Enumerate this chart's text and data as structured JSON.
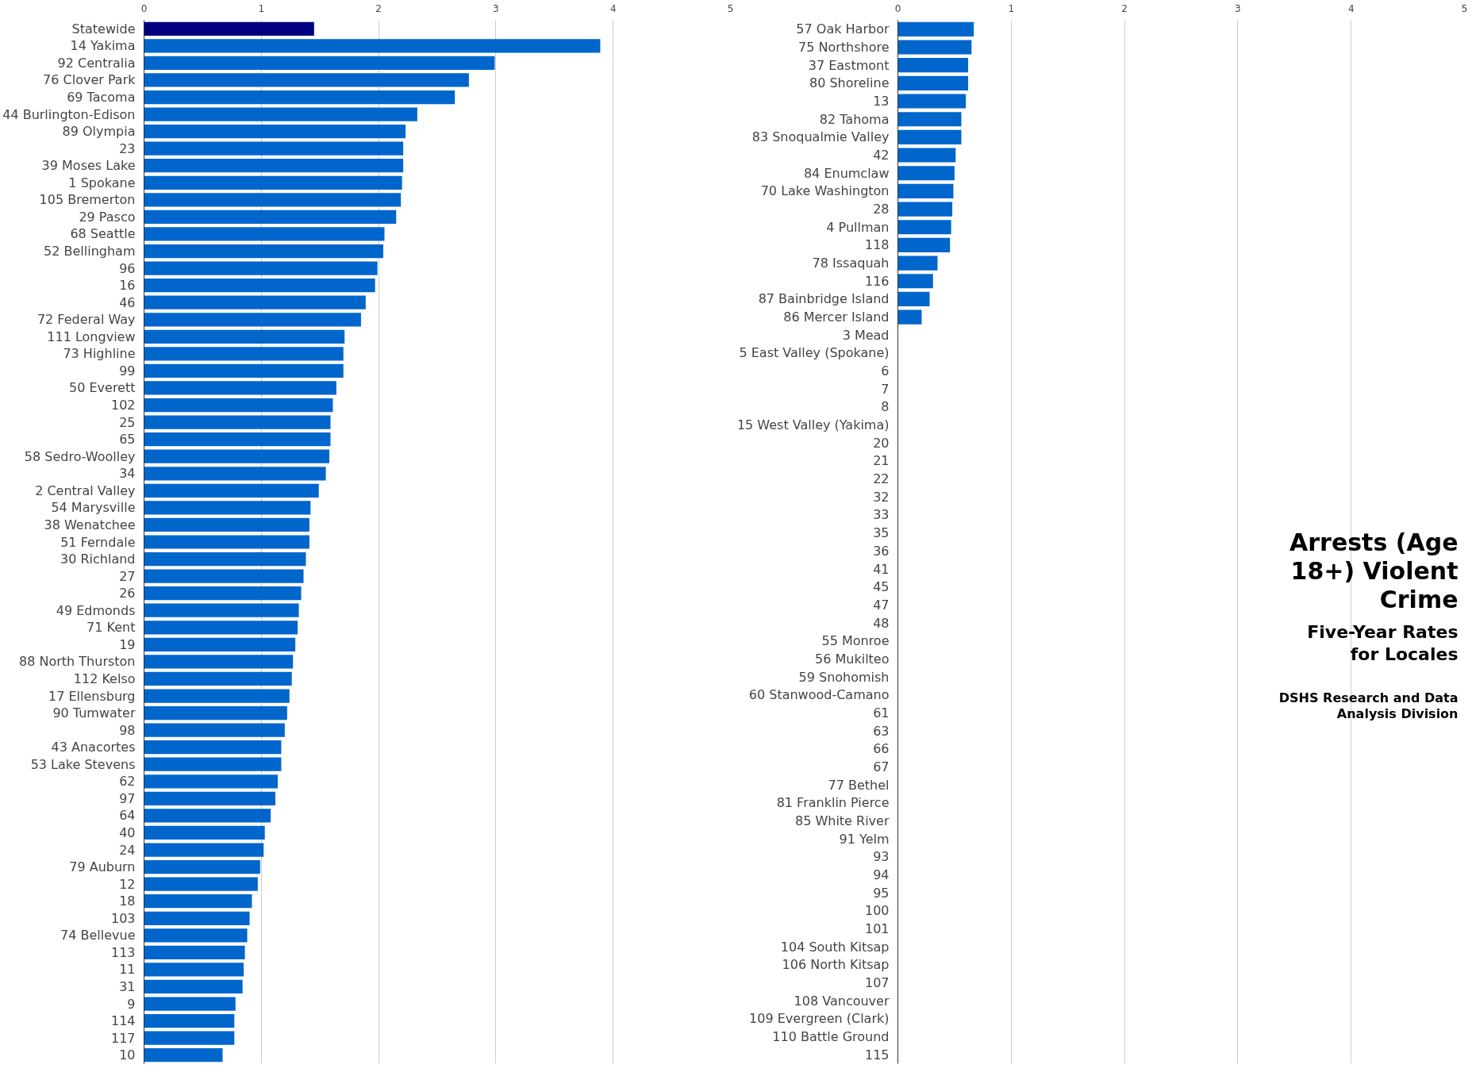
{
  "chart_data": [
    {
      "type": "bar",
      "orientation": "horizontal",
      "grid": "x",
      "xlim": [
        0,
        5
      ],
      "xticks": [
        0,
        1,
        2,
        3,
        4,
        5
      ],
      "categories": [
        "Statewide",
        "14 Yakima",
        "92 Centralia",
        "76 Clover Park",
        "69 Tacoma",
        "44 Burlington-Edison",
        "89 Olympia",
        "23",
        "39 Moses Lake",
        "1 Spokane",
        "105 Bremerton",
        "29 Pasco",
        "68 Seattle",
        "52 Bellingham",
        "96",
        "16",
        "46",
        "72 Federal Way",
        "111 Longview",
        "73 Highline",
        "99",
        "50 Everett",
        "102",
        "25",
        "65",
        "58 Sedro-Woolley",
        "34",
        "2 Central Valley",
        "54 Marysville",
        "38 Wenatchee",
        "51 Ferndale",
        "30 Richland",
        "27",
        "26",
        "49 Edmonds",
        "71 Kent",
        "19",
        "88 North Thurston",
        "112 Kelso",
        "17 Ellensburg",
        "90 Tumwater",
        "98",
        "43 Anacortes",
        "53 Lake Stevens",
        "62",
        "97",
        "64",
        "40",
        "24",
        "79 Auburn",
        "12",
        "18",
        "103",
        "74 Bellevue",
        "113",
        "11",
        "31",
        "9",
        "114",
        "117",
        "10"
      ],
      "values": [
        1.45,
        3.89,
        2.99,
        2.77,
        2.65,
        2.33,
        2.23,
        2.21,
        2.21,
        2.2,
        2.19,
        2.15,
        2.05,
        2.04,
        1.99,
        1.97,
        1.89,
        1.85,
        1.71,
        1.7,
        1.7,
        1.64,
        1.61,
        1.59,
        1.59,
        1.58,
        1.55,
        1.49,
        1.42,
        1.41,
        1.41,
        1.38,
        1.36,
        1.34,
        1.32,
        1.31,
        1.29,
        1.27,
        1.26,
        1.24,
        1.22,
        1.2,
        1.17,
        1.17,
        1.14,
        1.12,
        1.08,
        1.03,
        1.02,
        0.99,
        0.97,
        0.92,
        0.9,
        0.88,
        0.86,
        0.85,
        0.84,
        0.78,
        0.77,
        0.77,
        0.67
      ],
      "colors": [
        "#000080",
        "#0066cc",
        "#0066cc",
        "#0066cc",
        "#0066cc",
        "#0066cc",
        "#0066cc",
        "#0066cc",
        "#0066cc",
        "#0066cc",
        "#0066cc",
        "#0066cc",
        "#0066cc",
        "#0066cc",
        "#0066cc",
        "#0066cc",
        "#0066cc",
        "#0066cc",
        "#0066cc",
        "#0066cc",
        "#0066cc",
        "#0066cc",
        "#0066cc",
        "#0066cc",
        "#0066cc",
        "#0066cc",
        "#0066cc",
        "#0066cc",
        "#0066cc",
        "#0066cc",
        "#0066cc",
        "#0066cc",
        "#0066cc",
        "#0066cc",
        "#0066cc",
        "#0066cc",
        "#0066cc",
        "#0066cc",
        "#0066cc",
        "#0066cc",
        "#0066cc",
        "#0066cc",
        "#0066cc",
        "#0066cc",
        "#0066cc",
        "#0066cc",
        "#0066cc",
        "#0066cc",
        "#0066cc",
        "#0066cc",
        "#0066cc",
        "#0066cc",
        "#0066cc",
        "#0066cc",
        "#0066cc",
        "#0066cc",
        "#0066cc",
        "#0066cc",
        "#0066cc",
        "#0066cc",
        "#0066cc"
      ]
    },
    {
      "type": "bar",
      "orientation": "horizontal",
      "grid": "x",
      "xlim": [
        0,
        5
      ],
      "xticks": [
        0,
        1,
        2,
        3,
        4,
        5
      ],
      "title": "Arrests (Age 18+) Violent Crime",
      "subtitle": "Five-Year Rates for Locales",
      "annotations": [
        "DSHS Research and Data Analysis Division"
      ],
      "categories": [
        "57 Oak Harbor",
        "75 Northshore",
        "37 Eastmont",
        "80 Shoreline",
        "13",
        "82 Tahoma",
        "83 Snoqualmie Valley",
        "42",
        "84 Enumclaw",
        "70 Lake Washington",
        "28",
        "4 Pullman",
        "118",
        "78 Issaquah",
        "116",
        "87 Bainbridge Island",
        "86 Mercer Island",
        "3 Mead",
        "5 East Valley (Spokane)",
        "6",
        "7",
        "8",
        "15 West Valley (Yakima)",
        "20",
        "21",
        "22",
        "32",
        "33",
        "35",
        "36",
        "41",
        "45",
        "47",
        "48",
        "55 Monroe",
        "56 Mukilteo",
        "59 Snohomish",
        "60 Stanwood-Camano",
        "61",
        "63",
        "66",
        "67",
        "77 Bethel",
        "81 Franklin Pierce",
        "85 White River",
        "91 Yelm",
        "93",
        "94",
        "95",
        "100",
        "101",
        "104 South Kitsap",
        "106 North Kitsap",
        "107",
        "108 Vancouver",
        "109 Evergreen (Clark)",
        "110 Battle Ground",
        "115"
      ],
      "values": [
        0.67,
        0.65,
        0.62,
        0.62,
        0.6,
        0.56,
        0.56,
        0.51,
        0.5,
        0.49,
        0.48,
        0.47,
        0.46,
        0.35,
        0.31,
        0.28,
        0.21,
        null,
        null,
        null,
        null,
        null,
        null,
        null,
        null,
        null,
        null,
        null,
        null,
        null,
        null,
        null,
        null,
        null,
        null,
        null,
        null,
        null,
        null,
        null,
        null,
        null,
        null,
        null,
        null,
        null,
        null,
        null,
        null,
        null,
        null,
        null,
        null,
        null,
        null,
        null,
        null,
        null
      ],
      "color": "#0066cc"
    }
  ]
}
